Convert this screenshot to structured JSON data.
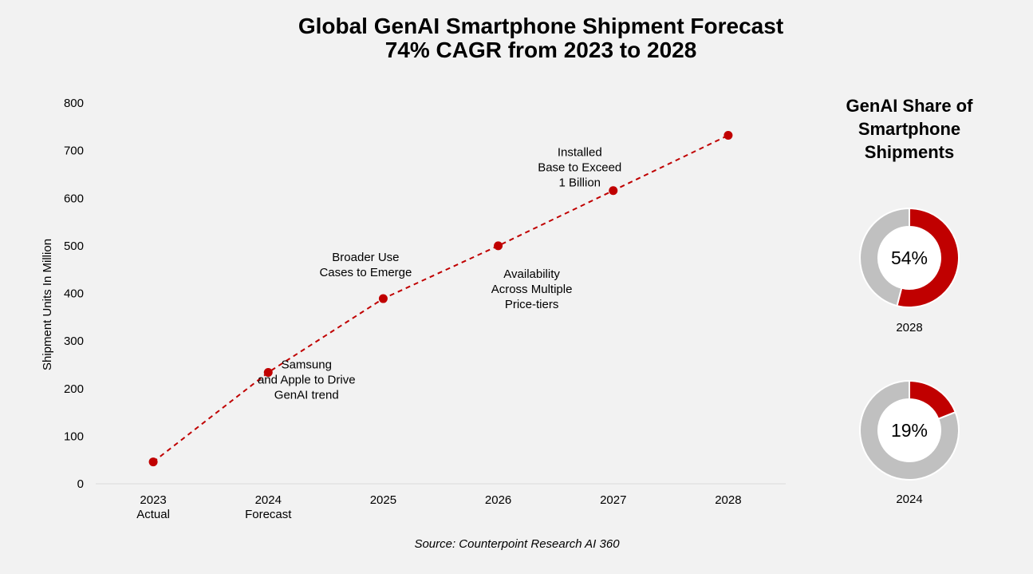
{
  "title_line1": "Global GenAI Smartphone Shipment Forecast",
  "title_line2": "74% CAGR from 2023 to 2028",
  "source": "Source: Counterpoint Research AI 360",
  "chart_data": [
    {
      "type": "line",
      "ylabel": "Shipment Units In Million",
      "ylim": [
        0,
        800
      ],
      "yticks": [
        "0",
        "100",
        "200",
        "300",
        "400",
        "500",
        "600",
        "700",
        "800"
      ],
      "categories": [
        [
          "2023",
          "Actual"
        ],
        [
          "2024",
          "Forecast"
        ],
        [
          "2025"
        ],
        [
          "2026"
        ],
        [
          "2027"
        ],
        [
          "2028"
        ]
      ],
      "values": [
        46,
        234,
        389,
        500,
        616,
        732
      ],
      "color": "#c00000",
      "line_style": "dashed",
      "annotations": [
        {
          "point": 1,
          "lines": [
            "Samsung",
            "and Apple to Drive",
            "GenAI trend"
          ]
        },
        {
          "point": 2,
          "lines": [
            "Broader Use",
            "Cases to Emerge"
          ]
        },
        {
          "point": 3,
          "lines": [
            "Availability",
            "Across Multiple",
            "Price-tiers"
          ]
        },
        {
          "point": 4,
          "lines": [
            "Installed",
            "Base to Exceed",
            "1 Billion"
          ]
        }
      ]
    },
    {
      "type": "pie",
      "title": [
        "GenAI Share of",
        "Smartphone",
        "Shipments"
      ],
      "donuts": [
        {
          "label": "2028",
          "value": 54,
          "center_text": "54%"
        },
        {
          "label": "2024",
          "value": 19,
          "center_text": "19%"
        }
      ],
      "colors": {
        "share": "#c00000",
        "rest": "#c0c0c0"
      }
    }
  ]
}
